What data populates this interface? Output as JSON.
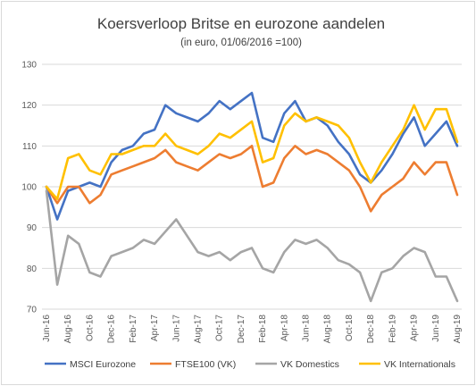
{
  "chart_data": {
    "type": "line",
    "title": "Koersverloop Britse en eurozone aandelen",
    "subtitle": "(in euro, 01/06/2016 =100)",
    "xlabel": "",
    "ylabel": "",
    "ylim": [
      70,
      130
    ],
    "yticks": [
      70,
      80,
      90,
      100,
      110,
      120,
      130
    ],
    "x_tick_labels": [
      "Jun-16",
      "Aug-16",
      "Oct-16",
      "Dec-16",
      "Feb-17",
      "Apr-17",
      "Jun-17",
      "Aug-17",
      "Oct-17",
      "Dec-17",
      "Feb-18",
      "Apr-18",
      "Jun-18",
      "Aug-18",
      "Oct-18",
      "Dec-18",
      "Feb-19",
      "Apr-19",
      "Jun-19",
      "Aug-19"
    ],
    "grid": true,
    "legend_position": "bottom",
    "x": [
      "Jun-16",
      "Jul-16",
      "Aug-16",
      "Sep-16",
      "Oct-16",
      "Nov-16",
      "Dec-16",
      "Jan-17",
      "Feb-17",
      "Mar-17",
      "Apr-17",
      "May-17",
      "Jun-17",
      "Jul-17",
      "Aug-17",
      "Sep-17",
      "Oct-17",
      "Nov-17",
      "Dec-17",
      "Jan-18",
      "Feb-18",
      "Mar-18",
      "Apr-18",
      "May-18",
      "Jun-18",
      "Jul-18",
      "Aug-18",
      "Sep-18",
      "Oct-18",
      "Nov-18",
      "Dec-18",
      "Jan-19",
      "Feb-19",
      "Mar-19",
      "Apr-19",
      "May-19",
      "Jun-19",
      "Jul-19",
      "Aug-19"
    ],
    "series": [
      {
        "name": "MSCI Eurozone",
        "color": "#4472c4",
        "values": [
          100,
          92,
          99,
          100,
          101,
          100,
          106,
          109,
          110,
          113,
          114,
          120,
          118,
          117,
          116,
          118,
          121,
          119,
          121,
          123,
          112,
          111,
          118,
          121,
          116,
          117,
          115,
          111,
          108,
          103,
          101,
          104,
          108,
          113,
          117,
          110,
          113,
          116,
          110
        ]
      },
      {
        "name": "FTSE100 (VK)",
        "color": "#ed7d31",
        "values": [
          100,
          96,
          100,
          100,
          96,
          98,
          103,
          104,
          105,
          106,
          107,
          109,
          106,
          105,
          104,
          106,
          108,
          107,
          108,
          110,
          100,
          101,
          107,
          110,
          108,
          109,
          108,
          106,
          104,
          100,
          94,
          98,
          100,
          102,
          106,
          103,
          106,
          106,
          98
        ]
      },
      {
        "name": "VK Domestics",
        "color": "#a5a5a5",
        "values": [
          99,
          76,
          88,
          86,
          79,
          78,
          83,
          84,
          85,
          87,
          86,
          89,
          92,
          88,
          84,
          83,
          84,
          82,
          84,
          85,
          80,
          79,
          84,
          87,
          86,
          87,
          85,
          82,
          81,
          79,
          72,
          79,
          80,
          83,
          85,
          84,
          78,
          78,
          72
        ]
      },
      {
        "name": "VK Internationals",
        "color": "#ffc000",
        "values": [
          100,
          97,
          107,
          108,
          104,
          103,
          108,
          108,
          109,
          110,
          110,
          113,
          110,
          109,
          108,
          110,
          113,
          112,
          114,
          116,
          106,
          107,
          115,
          118,
          116,
          117,
          116,
          115,
          112,
          106,
          101,
          106,
          110,
          114,
          120,
          114,
          119,
          119,
          111
        ]
      }
    ]
  }
}
